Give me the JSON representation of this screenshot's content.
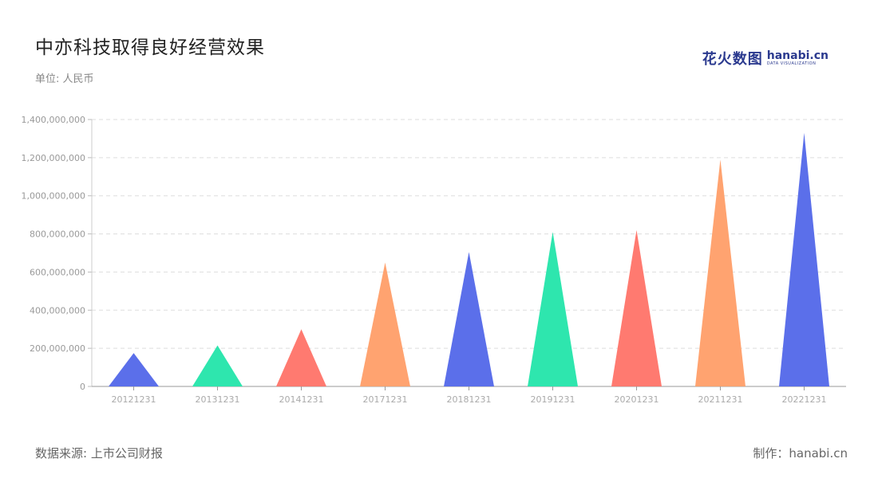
{
  "title": "中亦科技取得良好经营效果",
  "subtitle": "单位: 人民币",
  "logo": {
    "cn": "花火数图",
    "en": "hanabi.cn",
    "en_sub": "DATA VISUALIZATION"
  },
  "footer": {
    "source": "数据来源: 上市公司财报",
    "credit": "制作：hanabi.cn"
  },
  "colors": {
    "blue": "#5B6FEA",
    "green": "#2EE6AE",
    "red": "#FF7A70",
    "orange": "#FFA370"
  },
  "chart_data": {
    "type": "bar",
    "mark": "triangle",
    "categories": [
      "20121231",
      "20131231",
      "20141231",
      "20171231",
      "20181231",
      "20191231",
      "20201231",
      "20211231",
      "20221231"
    ],
    "values": [
      175000000,
      215000000,
      300000000,
      650000000,
      705000000,
      810000000,
      820000000,
      1190000000,
      1330000000
    ],
    "colors": [
      "#5B6FEA",
      "#2EE6AE",
      "#FF7A70",
      "#FFA370",
      "#5B6FEA",
      "#2EE6AE",
      "#FF7A70",
      "#FFA370",
      "#5B6FEA"
    ],
    "ylim": [
      0,
      1400000000
    ],
    "yticks": [
      0,
      200000000,
      400000000,
      600000000,
      800000000,
      1000000000,
      1200000000,
      1400000000
    ],
    "ytick_labels": [
      "0",
      "200,000,000",
      "400,000,000",
      "600,000,000",
      "800,000,000",
      "1,000,000,000",
      "1,200,000,000",
      "1,400,000,000"
    ],
    "grid": true,
    "xlabel": "",
    "ylabel": ""
  }
}
